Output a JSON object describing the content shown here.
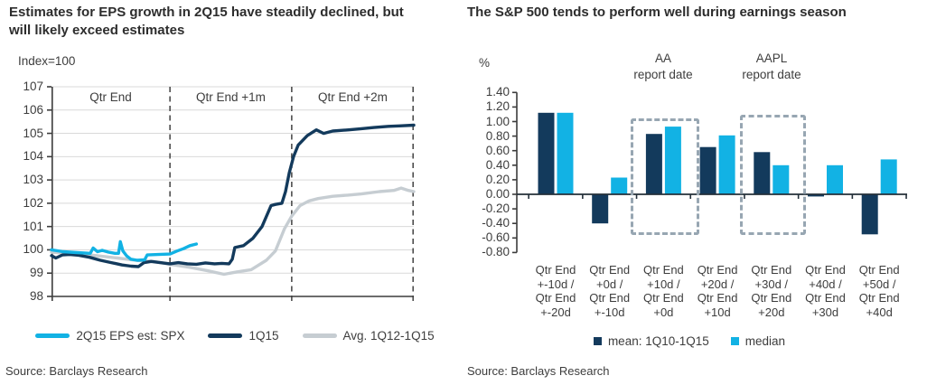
{
  "left_panel": {
    "title_line1": "Estimates for EPS growth in 2Q15 have steadily declined, but",
    "title_line2": "will likely exceed estimates",
    "axis_unit_label": "Index=100",
    "section_labels": [
      "Qtr End",
      "Qtr End +1m",
      "Qtr End +2m"
    ],
    "legend": [
      {
        "label": "2Q15 EPS est: SPX",
        "color": "#12b2e4"
      },
      {
        "label": "1Q15",
        "color": "#133a5c"
      },
      {
        "label": "Avg. 1Q12-1Q15",
        "color": "#c6cdd2"
      }
    ],
    "source": "Source: Barclays Research"
  },
  "right_panel": {
    "title": "The S&P 500 tends to perform well during earnings season",
    "axis_unit_label": "%",
    "annotations": [
      {
        "line1": "AA",
        "line2": "report date"
      },
      {
        "line1": "AAPL",
        "line2": "report date"
      }
    ],
    "legend": [
      {
        "label": "mean: 1Q10-1Q15",
        "color": "#133a5c"
      },
      {
        "label": "median",
        "color": "#12b2e4"
      }
    ],
    "source": "Source: Barclays Research"
  },
  "colors": {
    "cyan": "#12b2e4",
    "navy": "#133a5c",
    "gray_line": "#c6cdd2",
    "gridline": "#d9d9d9",
    "axis": "#3c3c3c",
    "dashed_divider": "#4d4d4d",
    "dashed_box": "#97a6b2"
  },
  "chart_data": [
    {
      "type": "line",
      "title": "Estimates for EPS growth in 2Q15 have steadily declined, but will likely exceed estimates",
      "ylabel": "Index=100",
      "ylim": [
        98,
        107
      ],
      "yticks": [
        107,
        106,
        105,
        104,
        103,
        102,
        101,
        100,
        99,
        98
      ],
      "grid": true,
      "x_sections": [
        "Qtr End",
        "Qtr End +1m",
        "Qtr End +2m"
      ],
      "section_boundaries": [
        0,
        0.327,
        0.663,
        1
      ],
      "legend_position": "bottom",
      "series": [
        {
          "name": "Avg. 1Q12-1Q15",
          "color": "#c6cdd2",
          "x": [
            0,
            0.107,
            0.182,
            0.232,
            0.282,
            0.327,
            0.382,
            0.431,
            0.476,
            0.511,
            0.551,
            0.593,
            0.618,
            0.643,
            0.663,
            0.686,
            0.711,
            0.736,
            0.776,
            0.818,
            0.855,
            0.905,
            0.945,
            0.965,
            0.985,
            1.0
          ],
          "y": [
            99.9,
            99.78,
            99.65,
            99.55,
            99.5,
            99.38,
            99.25,
            99.1,
            98.95,
            99.05,
            99.15,
            99.55,
            99.95,
            100.9,
            101.45,
            101.9,
            102.1,
            102.2,
            102.3,
            102.35,
            102.4,
            102.5,
            102.55,
            102.65,
            102.55,
            102.5
          ]
        },
        {
          "name": "1Q15",
          "color": "#133a5c",
          "x": [
            0,
            0.012,
            0.03,
            0.05,
            0.075,
            0.105,
            0.135,
            0.165,
            0.195,
            0.22,
            0.24,
            0.255,
            0.275,
            0.3,
            0.327,
            0.35,
            0.375,
            0.4,
            0.425,
            0.45,
            0.47,
            0.49,
            0.499,
            0.506,
            0.53,
            0.556,
            0.581,
            0.606,
            0.618,
            0.636,
            0.646,
            0.656,
            0.668,
            0.681,
            0.706,
            0.731,
            0.751,
            0.776,
            0.82,
            0.855,
            0.89,
            0.93,
            0.96,
            1.0
          ],
          "y": [
            99.75,
            99.65,
            99.78,
            99.8,
            99.77,
            99.68,
            99.55,
            99.45,
            99.35,
            99.3,
            99.28,
            99.45,
            99.5,
            99.45,
            99.4,
            99.45,
            99.4,
            99.38,
            99.44,
            99.4,
            99.42,
            99.4,
            99.6,
            100.1,
            100.18,
            100.5,
            101.0,
            101.9,
            101.95,
            102.0,
            102.5,
            103.3,
            104.0,
            104.5,
            104.9,
            105.15,
            105.0,
            105.1,
            105.15,
            105.2,
            105.25,
            105.3,
            105.32,
            105.35
          ]
        },
        {
          "name": "2Q15 EPS est: SPX",
          "color": "#12b2e4",
          "x": [
            0,
            0.032,
            0.07,
            0.107,
            0.115,
            0.127,
            0.14,
            0.157,
            0.175,
            0.185,
            0.19,
            0.197,
            0.207,
            0.219,
            0.237,
            0.257,
            0.264,
            0.294,
            0.327,
            0.347,
            0.364,
            0.382,
            0.4
          ],
          "y": [
            100.0,
            99.92,
            99.88,
            99.85,
            100.08,
            99.92,
            99.98,
            99.9,
            99.85,
            99.85,
            100.35,
            99.95,
            99.75,
            99.6,
            99.55,
            99.57,
            99.78,
            99.8,
            99.82,
            99.95,
            100.05,
            100.18,
            100.25
          ]
        }
      ]
    },
    {
      "type": "bar",
      "title": "The S&P 500 tends to perform well during earnings season",
      "ylabel": "%",
      "ylim": [
        -0.8,
        1.4
      ],
      "ytick_step": 0.2,
      "grid": false,
      "legend_position": "bottom",
      "categories": [
        [
          "Qtr End",
          "+-10d /",
          "Qtr End",
          "+-20d"
        ],
        [
          "Qtr End",
          "+0d /",
          "Qtr End",
          "+-10d"
        ],
        [
          "Qtr End",
          "+10d /",
          "Qtr End",
          "+0d"
        ],
        [
          "Qtr End",
          "+20d /",
          "Qtr End",
          "+10d"
        ],
        [
          "Qtr End",
          "+30d /",
          "Qtr End",
          "+20d"
        ],
        [
          "Qtr End",
          "+40d /",
          "Qtr End",
          "+30d"
        ],
        [
          "Qtr End",
          "+50d /",
          "Qtr End",
          "+40d"
        ]
      ],
      "series": [
        {
          "name": "mean: 1Q10-1Q15",
          "color": "#133a5c",
          "values": [
            1.12,
            -0.4,
            0.83,
            0.65,
            0.58,
            -0.03,
            -0.55
          ]
        },
        {
          "name": "median",
          "color": "#12b2e4",
          "values": [
            1.12,
            0.23,
            0.93,
            0.81,
            0.4,
            0.4,
            0.48
          ]
        }
      ],
      "annotations": [
        {
          "text": "AA report date",
          "group_index": 2
        },
        {
          "text": "AAPL report date",
          "group_index": 4
        }
      ]
    }
  ]
}
